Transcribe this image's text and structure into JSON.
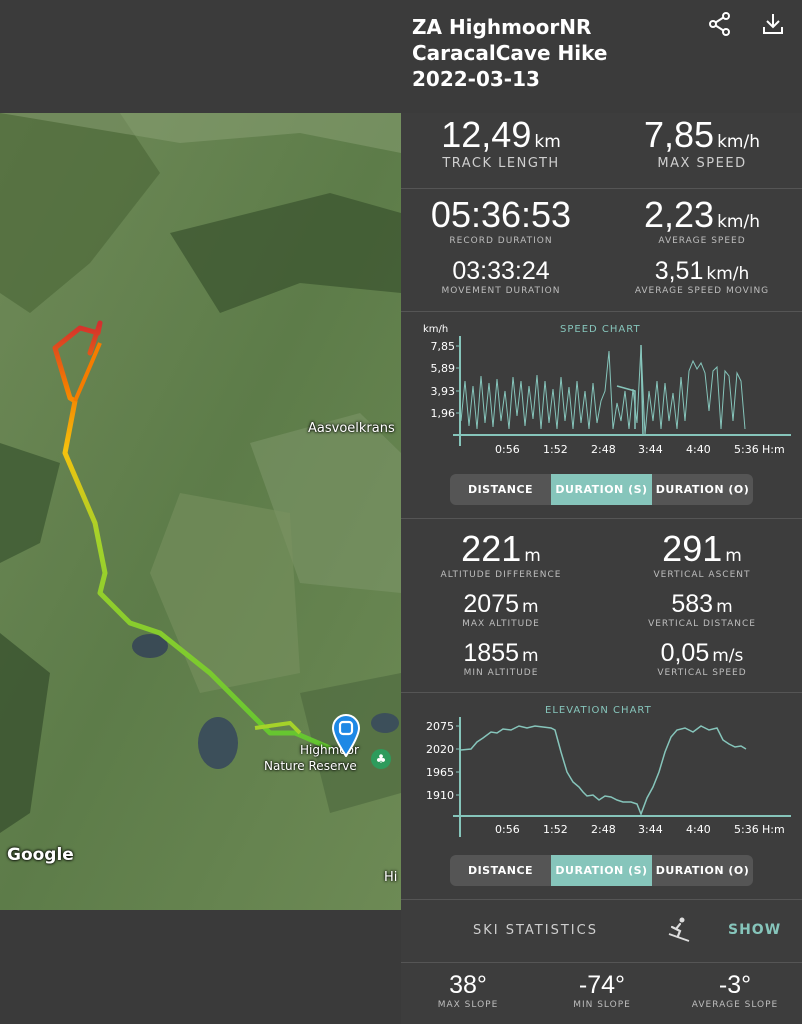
{
  "header": {
    "title": "ZA HighmoorNR\nCaracalCave Hike\n2022-03-13",
    "share_icon": "share-icon",
    "download_icon": "download-icon"
  },
  "map": {
    "label_aasvoelkrans": "Aasvoelkrans",
    "label_reserve_1": "Highmoor",
    "label_reserve_2": "Nature Reserve",
    "label_hi": "Hi",
    "google_logo": "Google",
    "track_colors": [
      "#d32f2f",
      "#f57c00",
      "#f4c20d",
      "#a5d22a",
      "#62c531"
    ]
  },
  "stats": {
    "track_length": {
      "value": "12,49",
      "unit": "km",
      "label": "TRACK LENGTH"
    },
    "max_speed": {
      "value": "7,85",
      "unit": "km/h",
      "label": "MAX SPEED"
    },
    "record_duration": {
      "value": "05:36:53",
      "label": "RECORD DURATION"
    },
    "average_speed": {
      "value": "2,23",
      "unit": "km/h",
      "label": "AVERAGE SPEED"
    },
    "movement_duration": {
      "value": "03:33:24",
      "label": "MOVEMENT DURATION"
    },
    "average_speed_moving": {
      "value": "3,51",
      "unit": "km/h",
      "label": "AVERAGE SPEED MOVING"
    }
  },
  "speed_chart": {
    "title": "SPEED CHART",
    "y_unit": "km/h",
    "x_unit": "H:m",
    "y_ticks": [
      "7,85",
      "5,89",
      "3,93",
      "1,96"
    ],
    "x_ticks": [
      "0:56",
      "1:52",
      "2:48",
      "3:44",
      "4:40",
      "5:36"
    ]
  },
  "toggle1": {
    "distance": "DISTANCE",
    "duration_s": "DURATION (S)",
    "duration_o": "DURATION (O)"
  },
  "altitude": {
    "altitude_difference": {
      "value": "221",
      "unit": "m",
      "label": "ALTITUDE DIFFERENCE"
    },
    "vertical_ascent": {
      "value": "291",
      "unit": "m",
      "label": "VERTICAL ASCENT"
    },
    "max_altitude": {
      "value": "2075",
      "unit": "m",
      "label": "MAX ALTITUDE"
    },
    "vertical_distance": {
      "value": "583",
      "unit": "m",
      "label": "VERTICAL DISTANCE"
    },
    "min_altitude": {
      "value": "1855",
      "unit": "m",
      "label": "MIN ALTITUDE"
    },
    "vertical_speed": {
      "value": "0,05",
      "unit": "m/s",
      "label": "VERTICAL SPEED"
    }
  },
  "elevation_chart": {
    "title": "ELEVATION CHART",
    "x_unit": "H:m",
    "y_ticks": [
      "2075",
      "2020",
      "1965",
      "1910"
    ],
    "x_ticks": [
      "0:56",
      "1:52",
      "2:48",
      "3:44",
      "4:40",
      "5:36"
    ]
  },
  "toggle2": {
    "distance": "DISTANCE",
    "duration_s": "DURATION (S)",
    "duration_o": "DURATION (O)"
  },
  "ski": {
    "label": "SKI STATISTICS",
    "icon": "skier-icon",
    "show": "SHOW"
  },
  "slope": {
    "max_slope": {
      "value": "38°",
      "label": "MAX SLOPE"
    },
    "min_slope": {
      "value": "-74°",
      "label": "MIN SLOPE"
    },
    "average_slope": {
      "value": "-3°",
      "label": "AVERAGE SLOPE"
    }
  },
  "colors": {
    "accent": "#86c5bb",
    "panel": "#3d3d3d",
    "header": "#3b3b3b"
  }
}
